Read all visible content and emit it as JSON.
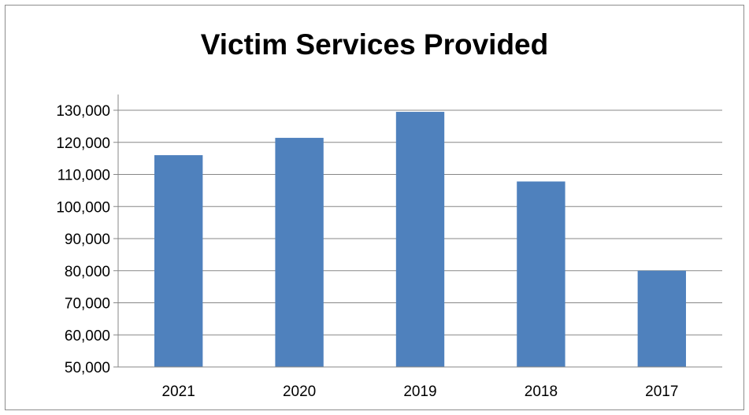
{
  "chart_data": {
    "type": "bar",
    "title": "Victim Services Provided",
    "xlabel": "",
    "ylabel": "",
    "categories": [
      "2021",
      "2020",
      "2019",
      "2018",
      "2017"
    ],
    "values": [
      116000,
      121400,
      129500,
      107800,
      80000
    ],
    "ylim": [
      50000,
      130000
    ],
    "y_ticks": [
      "50,000",
      "60,000",
      "70,000",
      "80,000",
      "90,000",
      "100,000",
      "110,000",
      "120,000",
      "130,000"
    ],
    "grid": true,
    "legend": "none",
    "bar_color": "#4F81BD"
  }
}
